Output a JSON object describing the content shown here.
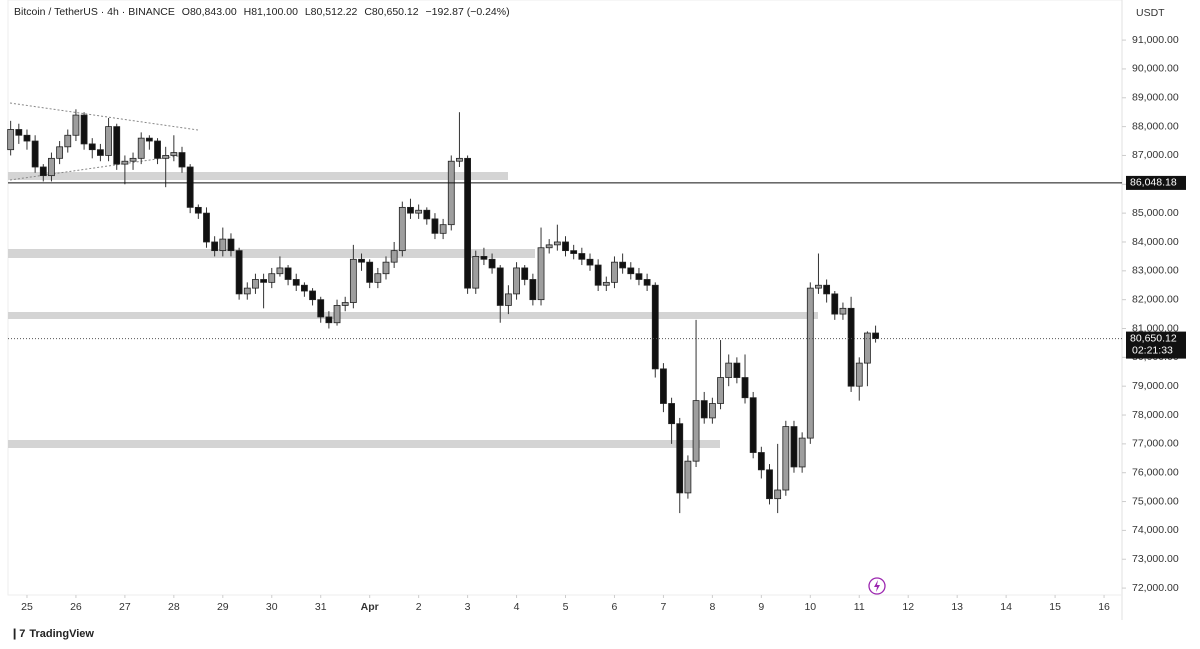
{
  "chart_data": {
    "type": "candlestick",
    "title": "Bitcoin / TetherUS · 4h · BINANCE",
    "header_values": [
      "O80,843.00",
      "H81,100.00",
      "L80,512.22",
      "C80,650.12",
      "−192.87 (−0.24%)"
    ],
    "currency": "USDT",
    "branding": "TradingView",
    "up_color": "#9e9e9e",
    "down_color": "#111111",
    "x": [
      -8,
      -4,
      0,
      4,
      8,
      12,
      16,
      20,
      24,
      28,
      32,
      36,
      40,
      44,
      48,
      52,
      56,
      60,
      64,
      68,
      72,
      76,
      80,
      84,
      88,
      92,
      96,
      100,
      104,
      108,
      112,
      116,
      120,
      124,
      128,
      132,
      136,
      140,
      144,
      148,
      152,
      156,
      160,
      164,
      168,
      172,
      176,
      180,
      184,
      188,
      192,
      196,
      200,
      204,
      208,
      212,
      216,
      220,
      224,
      228,
      232,
      236,
      240,
      244,
      248,
      252,
      256,
      260,
      264,
      268,
      272,
      276,
      280,
      284,
      288,
      292,
      296,
      300,
      304,
      308,
      312,
      316,
      320,
      324,
      328,
      332,
      336,
      340,
      344,
      348,
      352,
      356,
      360,
      364,
      368,
      372,
      376,
      380,
      384,
      388,
      392,
      396,
      400,
      404,
      408,
      412,
      416
    ],
    "open": [
      87200,
      87900,
      87700,
      87500,
      86600,
      86300,
      86900,
      87300,
      87700,
      88400,
      87400,
      87200,
      87000,
      88000,
      86700,
      86800,
      86900,
      87600,
      87500,
      86900,
      87000,
      87100,
      86600,
      85200,
      85000,
      84000,
      83700,
      84100,
      83700,
      82200,
      82400,
      82700,
      82600,
      82900,
      83100,
      82700,
      82500,
      82300,
      82000,
      81400,
      81200,
      81800,
      81900,
      83400,
      83300,
      82600,
      82900,
      83300,
      83700,
      85200,
      85000,
      85100,
      84800,
      84300,
      84600,
      86800,
      86900,
      82400,
      83500,
      83400,
      83100,
      81800,
      82200,
      83100,
      82700,
      82000,
      83800,
      83900,
      84000,
      83700,
      83600,
      83400,
      83200,
      82500,
      82600,
      83300,
      83100,
      82900,
      82700,
      82500,
      79600,
      78400,
      77700,
      75300,
      76400,
      78500,
      77900,
      78400,
      79300,
      79800,
      79300,
      78600,
      76700,
      76100,
      75100,
      75400,
      77600,
      76200,
      77200,
      82400,
      82500,
      82200,
      81500,
      81700,
      79000,
      79800,
      80843
    ],
    "high": [
      88200,
      88100,
      87900,
      87700,
      86700,
      87100,
      87500,
      87900,
      88600,
      88500,
      87600,
      87400,
      88300,
      88100,
      87000,
      87100,
      87800,
      87700,
      87600,
      87300,
      87700,
      87300,
      86700,
      85300,
      85200,
      84200,
      84500,
      84300,
      83800,
      82600,
      82900,
      82900,
      83100,
      83500,
      83200,
      82900,
      82600,
      82400,
      82100,
      81600,
      82000,
      82100,
      83900,
      83600,
      83400,
      83100,
      83500,
      84000,
      85400,
      85500,
      85300,
      85200,
      85000,
      84800,
      87000,
      88500,
      87000,
      83700,
      83800,
      83600,
      83200,
      82500,
      83300,
      83200,
      82900,
      84500,
      84100,
      84600,
      84200,
      83900,
      83800,
      83600,
      83400,
      82800,
      83500,
      83600,
      83300,
      83100,
      82900,
      82600,
      79800,
      78600,
      77900,
      76600,
      81300,
      78800,
      78600,
      80600,
      80100,
      80000,
      80100,
      78800,
      76900,
      76300,
      77000,
      77800,
      77800,
      77400,
      82600,
      83600,
      82700,
      82300,
      81900,
      82100,
      80000,
      80900,
      81100
    ],
    "low": [
      87000,
      87400,
      87200,
      86400,
      86100,
      86100,
      86700,
      87100,
      87500,
      87200,
      86900,
      86800,
      86800,
      86500,
      86000,
      86500,
      86700,
      87200,
      86700,
      85900,
      86800,
      86400,
      85000,
      84800,
      83800,
      83500,
      83500,
      83500,
      82000,
      82000,
      82200,
      81700,
      82400,
      82800,
      82500,
      82300,
      82100,
      81800,
      81200,
      81000,
      81100,
      81600,
      81700,
      83000,
      82400,
      82400,
      82700,
      83100,
      83500,
      84800,
      84800,
      84600,
      84100,
      84100,
      84400,
      86600,
      82200,
      82200,
      83200,
      82900,
      81200,
      81500,
      82000,
      82500,
      81800,
      81800,
      83600,
      83700,
      83500,
      83400,
      83200,
      83000,
      82300,
      82300,
      82400,
      82900,
      82700,
      82500,
      82300,
      79300,
      78100,
      77000,
      74600,
      75100,
      76200,
      77700,
      77700,
      78200,
      79000,
      79100,
      78400,
      76500,
      75800,
      74900,
      74600,
      75200,
      76000,
      76000,
      77000,
      82200,
      81900,
      81300,
      81300,
      78800,
      78500,
      79000,
      80512.22
    ],
    "close": [
      87900,
      87700,
      87500,
      86600,
      86300,
      86900,
      87300,
      87700,
      88400,
      87400,
      87200,
      87000,
      88000,
      86700,
      86800,
      86900,
      87600,
      87500,
      86900,
      87000,
      87100,
      86600,
      85200,
      85000,
      84000,
      83700,
      84100,
      83700,
      82200,
      82400,
      82700,
      82600,
      82900,
      83100,
      82700,
      82500,
      82300,
      82000,
      81400,
      81200,
      81800,
      81900,
      83400,
      83300,
      82600,
      82900,
      83300,
      83700,
      85200,
      85000,
      85100,
      84800,
      84300,
      84600,
      86800,
      86900,
      82400,
      83500,
      83400,
      83100,
      81800,
      82200,
      83100,
      82700,
      82000,
      83800,
      83900,
      84000,
      83700,
      83600,
      83400,
      83200,
      82500,
      82600,
      83300,
      83100,
      82900,
      82700,
      82500,
      79600,
      78400,
      77700,
      75300,
      76400,
      78500,
      77900,
      78400,
      79300,
      79800,
      79300,
      78600,
      76700,
      76100,
      75100,
      75400,
      77600,
      76200,
      77200,
      82400,
      82500,
      82200,
      81500,
      81700,
      79000,
      79800,
      80843,
      80650.12
    ],
    "xlim": [
      -9.3,
      536.8
    ],
    "ylim": [
      71760,
      92390
    ],
    "xticks": [
      {
        "value": 0,
        "label": "25"
      },
      {
        "value": 24,
        "label": "26"
      },
      {
        "value": 48,
        "label": "27"
      },
      {
        "value": 72,
        "label": "28"
      },
      {
        "value": 96,
        "label": "29"
      },
      {
        "value": 120,
        "label": "30"
      },
      {
        "value": 144,
        "label": "31"
      },
      {
        "value": 168,
        "label": "Apr"
      },
      {
        "value": 192,
        "label": "2"
      },
      {
        "value": 216,
        "label": "3"
      },
      {
        "value": 240,
        "label": "4"
      },
      {
        "value": 264,
        "label": "5"
      },
      {
        "value": 288,
        "label": "6"
      },
      {
        "value": 312,
        "label": "7"
      },
      {
        "value": 336,
        "label": "8"
      },
      {
        "value": 360,
        "label": "9"
      },
      {
        "value": 384,
        "label": "10"
      },
      {
        "value": 408,
        "label": "11"
      },
      {
        "value": 432,
        "label": "12"
      },
      {
        "value": 456,
        "label": "13"
      },
      {
        "value": 480,
        "label": "14"
      },
      {
        "value": 504,
        "label": "15"
      },
      {
        "value": 528,
        "label": "16"
      }
    ],
    "yticks": [
      {
        "value": 72000,
        "label": "72,000.00"
      },
      {
        "value": 73000,
        "label": "73,000.00"
      },
      {
        "value": 74000,
        "label": "74,000.00"
      },
      {
        "value": 75000,
        "label": "75,000.00"
      },
      {
        "value": 76000,
        "label": "76,000.00"
      },
      {
        "value": 77000,
        "label": "77,000.00"
      },
      {
        "value": 78000,
        "label": "78,000.00"
      },
      {
        "value": 79000,
        "label": "79,000.00"
      },
      {
        "value": 80000,
        "label": "80,000.00"
      },
      {
        "value": 81000,
        "label": "81,000.00"
      },
      {
        "value": 82000,
        "label": "82,000.00"
      },
      {
        "value": 83000,
        "label": "83,000.00"
      },
      {
        "value": 84000,
        "label": "84,000.00"
      },
      {
        "value": 85000,
        "label": "85,000.00"
      },
      {
        "value": 86000,
        "label": "86,000.00"
      },
      {
        "value": 87000,
        "label": "87,000.00"
      },
      {
        "value": 88000,
        "label": "88,000.00"
      },
      {
        "value": 89000,
        "label": "89,000.00"
      },
      {
        "value": 90000,
        "label": "90,000.00"
      },
      {
        "value": 91000,
        "label": "91,000.00"
      }
    ],
    "price_line": {
      "value": 86048.18,
      "label": "86,048.18"
    },
    "last_price": {
      "value": 80650.12,
      "label": "80,650.12",
      "countdown": "02:21:33"
    }
  }
}
